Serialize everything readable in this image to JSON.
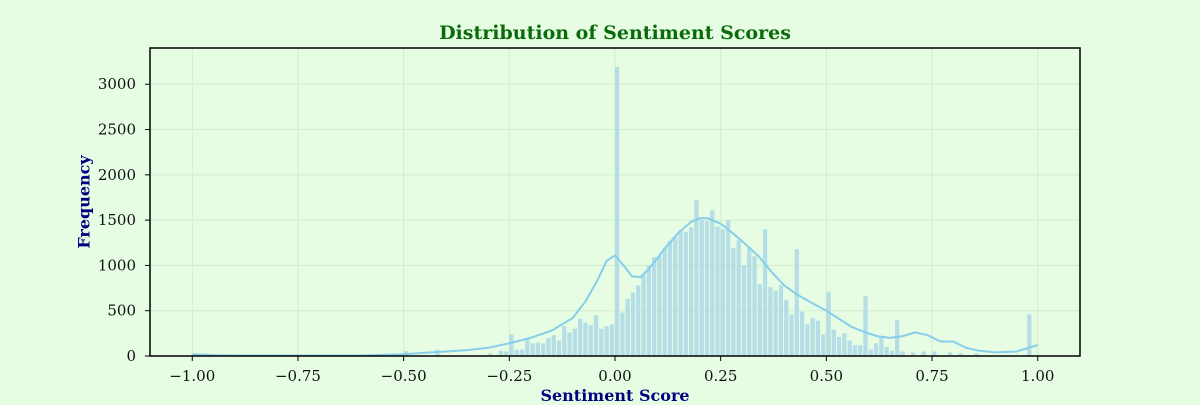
{
  "chart_data": {
    "type": "bar",
    "title": "Distribution of Sentiment Scores",
    "xlabel": "Sentiment Score",
    "ylabel": "Frequency",
    "xlim": [
      -1.1,
      1.1
    ],
    "ylim": [
      0,
      3400
    ],
    "x_ticks": [
      -1.0,
      -0.75,
      -0.5,
      -0.25,
      0.0,
      0.25,
      0.5,
      0.75,
      1.0
    ],
    "x_tick_labels": [
      "−1.00",
      "−0.75",
      "−0.50",
      "−0.25",
      "0.00",
      "0.25",
      "0.50",
      "0.75",
      "1.00"
    ],
    "y_ticks": [
      0,
      500,
      1000,
      1500,
      2000,
      2500,
      3000
    ],
    "y_tick_labels": [
      "0",
      "500",
      "1000",
      "1500",
      "2000",
      "2500",
      "3000"
    ],
    "grid": true,
    "bar_color": "#add8e6",
    "kde_color": "#87ceeb",
    "bin_width": 0.0125,
    "bins": [
      [
        -1.0,
        25
      ],
      [
        -0.5,
        55
      ],
      [
        -0.425,
        70
      ],
      [
        -0.3,
        30
      ],
      [
        -0.275,
        60
      ],
      [
        -0.2625,
        50
      ],
      [
        -0.25,
        240
      ],
      [
        -0.2375,
        70
      ],
      [
        -0.225,
        70
      ],
      [
        -0.2125,
        200
      ],
      [
        -0.2,
        140
      ],
      [
        -0.1875,
        150
      ],
      [
        -0.175,
        140
      ],
      [
        -0.1625,
        200
      ],
      [
        -0.15,
        230
      ],
      [
        -0.1375,
        170
      ],
      [
        -0.125,
        330
      ],
      [
        -0.1125,
        260
      ],
      [
        -0.1,
        300
      ],
      [
        -0.0875,
        410
      ],
      [
        -0.075,
        370
      ],
      [
        -0.0625,
        340
      ],
      [
        -0.05,
        450
      ],
      [
        -0.0375,
        300
      ],
      [
        -0.025,
        330
      ],
      [
        -0.0125,
        350
      ],
      [
        0.0,
        3190
      ],
      [
        0.0125,
        480
      ],
      [
        0.025,
        630
      ],
      [
        0.0375,
        700
      ],
      [
        0.05,
        780
      ],
      [
        0.0625,
        900
      ],
      [
        0.075,
        1000
      ],
      [
        0.0875,
        1090
      ],
      [
        0.1,
        1110
      ],
      [
        0.1125,
        1190
      ],
      [
        0.125,
        1270
      ],
      [
        0.1375,
        1310
      ],
      [
        0.15,
        1390
      ],
      [
        0.1625,
        1370
      ],
      [
        0.175,
        1420
      ],
      [
        0.1875,
        1720
      ],
      [
        0.2,
        1500
      ],
      [
        0.2125,
        1490
      ],
      [
        0.225,
        1610
      ],
      [
        0.2375,
        1430
      ],
      [
        0.25,
        1400
      ],
      [
        0.2625,
        1500
      ],
      [
        0.275,
        1190
      ],
      [
        0.2875,
        1280
      ],
      [
        0.3,
        1000
      ],
      [
        0.3125,
        1200
      ],
      [
        0.325,
        1100
      ],
      [
        0.3375,
        790
      ],
      [
        0.35,
        1400
      ],
      [
        0.3625,
        760
      ],
      [
        0.375,
        720
      ],
      [
        0.3875,
        780
      ],
      [
        0.4,
        620
      ],
      [
        0.4125,
        460
      ],
      [
        0.425,
        1180
      ],
      [
        0.4375,
        490
      ],
      [
        0.45,
        350
      ],
      [
        0.4625,
        420
      ],
      [
        0.475,
        390
      ],
      [
        0.4875,
        240
      ],
      [
        0.5,
        710
      ],
      [
        0.5125,
        290
      ],
      [
        0.525,
        210
      ],
      [
        0.5375,
        250
      ],
      [
        0.55,
        170
      ],
      [
        0.5625,
        120
      ],
      [
        0.575,
        120
      ],
      [
        0.5875,
        660
      ],
      [
        0.6,
        70
      ],
      [
        0.6125,
        140
      ],
      [
        0.625,
        210
      ],
      [
        0.6375,
        100
      ],
      [
        0.65,
        60
      ],
      [
        0.6625,
        400
      ],
      [
        0.675,
        50
      ],
      [
        0.7,
        40
      ],
      [
        0.725,
        50
      ],
      [
        0.75,
        50
      ],
      [
        0.7875,
        40
      ],
      [
        0.8125,
        30
      ],
      [
        0.85,
        30
      ],
      [
        0.975,
        460
      ]
    ],
    "kde": {
      "x": [
        -1.0,
        -0.95,
        -0.9,
        -0.8,
        -0.7,
        -0.6,
        -0.5,
        -0.45,
        -0.4,
        -0.35,
        -0.3,
        -0.25,
        -0.2,
        -0.15,
        -0.1,
        -0.07,
        -0.04,
        -0.02,
        0.0,
        0.02,
        0.04,
        0.06,
        0.08,
        0.1,
        0.12,
        0.15,
        0.18,
        0.2,
        0.22,
        0.25,
        0.28,
        0.31,
        0.34,
        0.37,
        0.4,
        0.43,
        0.46,
        0.5,
        0.53,
        0.56,
        0.6,
        0.62,
        0.65,
        0.68,
        0.71,
        0.74,
        0.77,
        0.8,
        0.83,
        0.86,
        0.9,
        0.95,
        1.0
      ],
      "y": [
        20,
        10,
        5,
        5,
        5,
        5,
        20,
        35,
        50,
        65,
        90,
        140,
        200,
        280,
        420,
        600,
        850,
        1050,
        1110,
        1000,
        880,
        870,
        960,
        1080,
        1200,
        1360,
        1480,
        1520,
        1520,
        1460,
        1350,
        1230,
        1100,
        930,
        780,
        680,
        600,
        500,
        410,
        320,
        250,
        220,
        200,
        220,
        260,
        230,
        160,
        160,
        90,
        60,
        40,
        50,
        120
      ]
    }
  }
}
